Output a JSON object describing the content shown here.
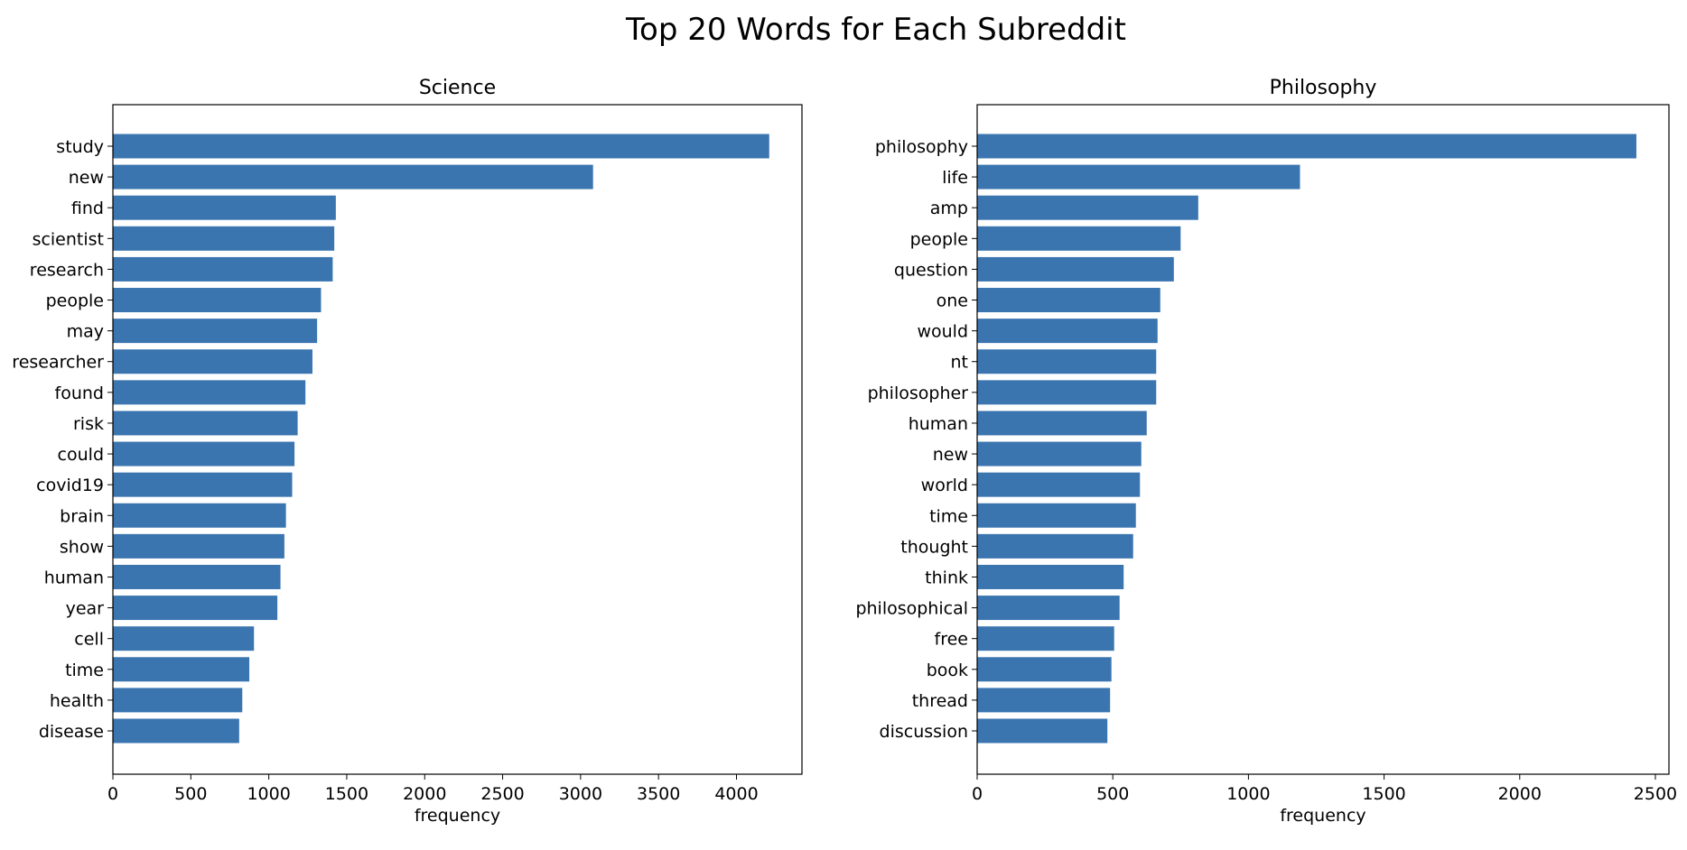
{
  "figure": {
    "suptitle": "Top 20 Words for Each Subreddit"
  },
  "chart_data": [
    {
      "type": "bar",
      "orientation": "horizontal",
      "title": "Science",
      "xlabel": "frequency",
      "ylabel": "",
      "xlim": [
        0,
        4420
      ],
      "xticks": [
        0,
        500,
        1000,
        1500,
        2000,
        2500,
        3000,
        3500,
        4000
      ],
      "color": "#3a75b0",
      "categories": [
        "study",
        "new",
        "find",
        "scientist",
        "research",
        "people",
        "may",
        "researcher",
        "found",
        "risk",
        "could",
        "covid19",
        "brain",
        "show",
        "human",
        "year",
        "cell",
        "time",
        "health",
        "disease"
      ],
      "values": [
        4210,
        3080,
        1430,
        1420,
        1410,
        1335,
        1310,
        1280,
        1235,
        1185,
        1165,
        1150,
        1110,
        1100,
        1075,
        1055,
        905,
        875,
        830,
        810
      ]
    },
    {
      "type": "bar",
      "orientation": "horizontal",
      "title": "Philosophy",
      "xlabel": "frequency",
      "ylabel": "",
      "xlim": [
        0,
        2550
      ],
      "xticks": [
        0,
        500,
        1000,
        1500,
        2000,
        2500
      ],
      "color": "#3a75b0",
      "categories": [
        "philosophy",
        "life",
        "amp",
        "people",
        "question",
        "one",
        "would",
        "nt",
        "philosopher",
        "human",
        "new",
        "world",
        "time",
        "thought",
        "think",
        "philosophical",
        "free",
        "book",
        "thread",
        "discussion"
      ],
      "values": [
        2430,
        1190,
        815,
        750,
        725,
        675,
        665,
        660,
        660,
        625,
        605,
        600,
        585,
        575,
        540,
        525,
        505,
        495,
        490,
        480
      ]
    }
  ]
}
